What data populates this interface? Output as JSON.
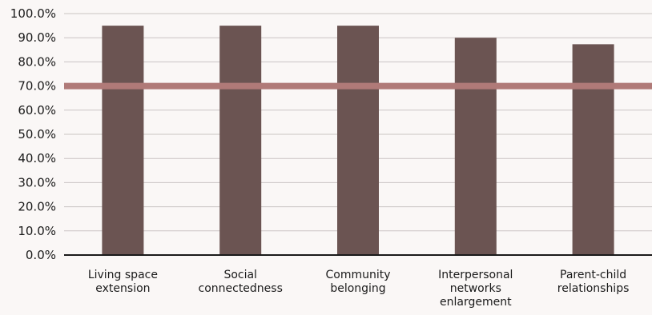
{
  "chart_data": {
    "type": "bar",
    "categories": [
      [
        "Living space",
        "extension"
      ],
      [
        "Social",
        "connectedness"
      ],
      [
        "Community",
        "belonging"
      ],
      [
        "Interpersonal",
        "networks",
        "enlargement"
      ],
      [
        "Parent-child",
        "relationships"
      ]
    ],
    "values": [
      95.0,
      95.0,
      95.0,
      90.0,
      87.3
    ],
    "reference_line": 70.0,
    "ylim": [
      0,
      100
    ],
    "yticks": [
      "0.0%",
      "10.0%",
      "20.0%",
      "30.0%",
      "40.0%",
      "50.0%",
      "60.0%",
      "70.0%",
      "80.0%",
      "90.0%",
      "100.0%"
    ],
    "grid": true,
    "title": "",
    "xlabel": "",
    "ylabel": "",
    "colors": {
      "bar": "#6b5452",
      "reference_line": "#b07a78",
      "grid": "#c9c4c3",
      "axis": "#1a1a1a",
      "background": "#faf7f6"
    }
  }
}
